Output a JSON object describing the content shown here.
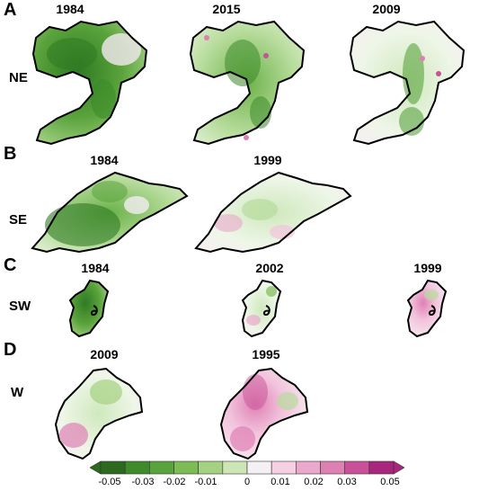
{
  "panels": [
    {
      "letter": "A",
      "region": "NE",
      "years": [
        "1984",
        "2015",
        "2009"
      ]
    },
    {
      "letter": "B",
      "region": "SE",
      "years": [
        "1984",
        "1999"
      ]
    },
    {
      "letter": "C",
      "region": "SW",
      "years": [
        "1984",
        "2002",
        "1999"
      ]
    },
    {
      "letter": "D",
      "region": "W",
      "years": [
        "2009",
        "1995"
      ]
    }
  ],
  "colorbar": {
    "ticks": [
      "-0.05",
      "-0.03",
      "-0.02",
      "-0.01",
      "0",
      "0.01",
      "0.02",
      "0.03",
      "0.05"
    ],
    "colors": [
      "#2d6a1f",
      "#3f8a2a",
      "#5aa33c",
      "#7dbb55",
      "#a5d182",
      "#cde6b6",
      "#f5f0f3",
      "#f5d0e3",
      "#eaa8cc",
      "#de80b4",
      "#c9519a",
      "#a8267c"
    ],
    "low_color": "#2d6a1f",
    "high_color": "#a8267c"
  }
}
